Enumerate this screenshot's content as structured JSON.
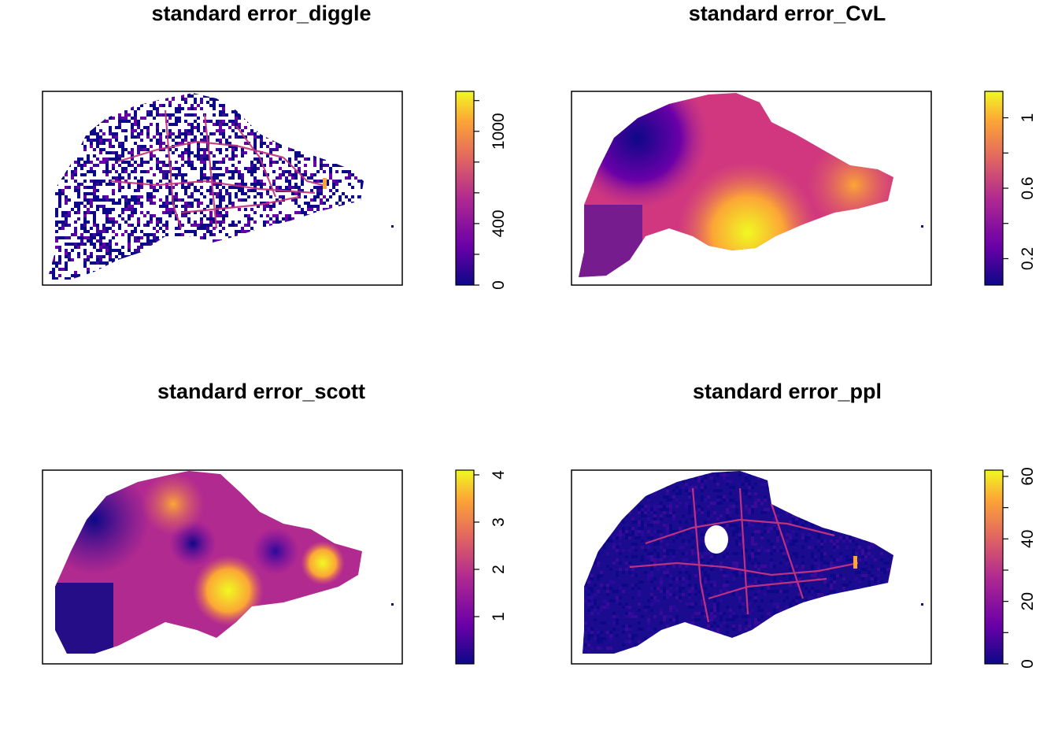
{
  "chart_data": [
    {
      "type": "heatmap",
      "title": "standard error_diggle",
      "legend_ticks": [
        "0",
        "400",
        "1000"
      ],
      "legend_range": [
        0,
        1260
      ],
      "legend_minor_ticks": [
        0,
        200,
        400,
        600,
        800,
        1000,
        1200
      ],
      "colors": [
        "#0d0887",
        "#6a00a8",
        "#b12a90",
        "#e16462",
        "#fca636",
        "#f0f921"
      ]
    },
    {
      "type": "heatmap",
      "title": "standard error_CvL",
      "legend_ticks": [
        "0.2",
        "0.6",
        "1"
      ],
      "legend_range": [
        0.05,
        1.15
      ],
      "legend_minor_ticks": [
        0.2,
        0.4,
        0.6,
        0.8,
        1.0
      ],
      "colors": [
        "#0d0887",
        "#6a00a8",
        "#b12a90",
        "#e16462",
        "#fca636",
        "#f0f921"
      ]
    },
    {
      "type": "heatmap",
      "title": "standard error_scott",
      "legend_ticks": [
        "1",
        "2",
        "3",
        "4"
      ],
      "legend_range": [
        0,
        4.1
      ],
      "legend_minor_ticks": [
        1,
        2,
        3,
        4
      ],
      "colors": [
        "#0d0887",
        "#6a00a8",
        "#b12a90",
        "#e16462",
        "#fca636",
        "#f0f921"
      ]
    },
    {
      "type": "heatmap",
      "title": "standard error_ppl",
      "legend_ticks": [
        "0",
        "20",
        "40",
        "60"
      ],
      "legend_range": [
        0,
        62
      ],
      "legend_minor_ticks": [
        0,
        10,
        20,
        30,
        40,
        50,
        60
      ],
      "colors": [
        "#0d0887",
        "#6a00a8",
        "#b12a90",
        "#e16462",
        "#fca636",
        "#f0f921"
      ]
    }
  ]
}
